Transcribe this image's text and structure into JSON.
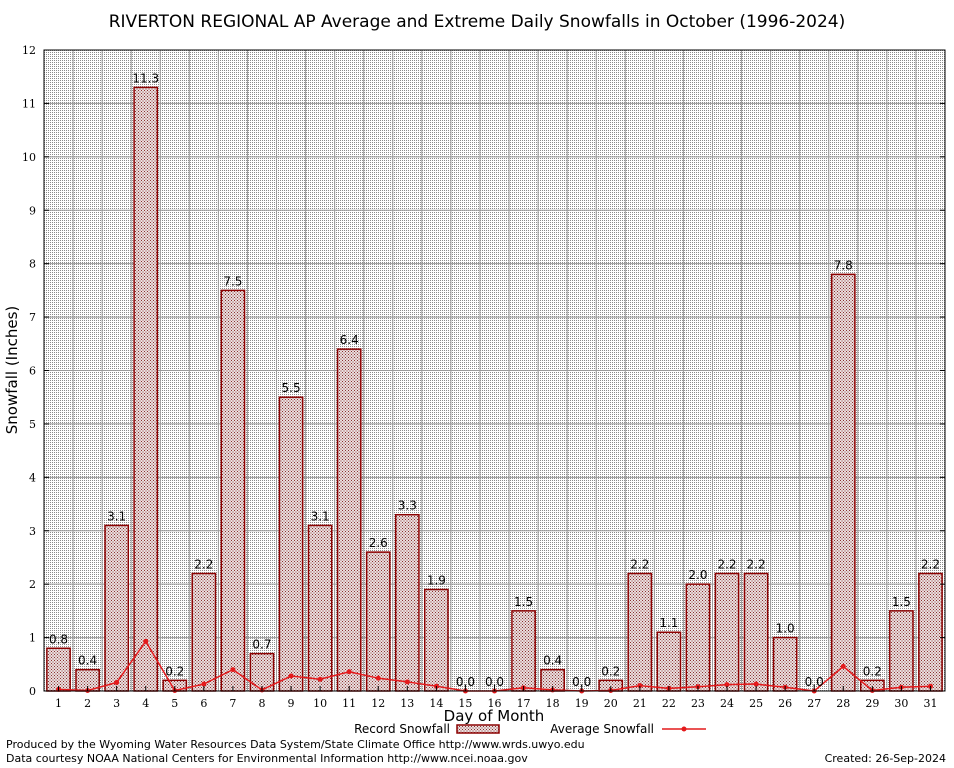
{
  "chart_data": {
    "type": "bar",
    "title": "RIVERTON REGIONAL AP Average and Extreme Daily Snowfalls in October (1996-2024)",
    "xlabel": "Day of Month",
    "ylabel": "Snowfall (Inches)",
    "ylim": [
      0,
      12
    ],
    "yticks": [
      0,
      1,
      2,
      3,
      4,
      5,
      6,
      7,
      8,
      9,
      10,
      11,
      12
    ],
    "grid": true,
    "legend_position": "bottom",
    "categories": [
      1,
      2,
      3,
      4,
      5,
      6,
      7,
      8,
      9,
      10,
      11,
      12,
      13,
      14,
      15,
      16,
      17,
      18,
      19,
      20,
      21,
      22,
      23,
      24,
      25,
      26,
      27,
      28,
      29,
      30,
      31
    ],
    "series": [
      {
        "name": "Record Snowfall",
        "type": "bar",
        "color": "#8b0000",
        "values": [
          0.8,
          0.4,
          3.1,
          11.3,
          0.2,
          2.2,
          7.5,
          0.7,
          5.5,
          3.1,
          6.4,
          2.6,
          3.3,
          1.9,
          0.0,
          0.0,
          1.5,
          0.4,
          0.0,
          0.2,
          2.2,
          1.1,
          2.0,
          2.2,
          2.2,
          1.0,
          0.0,
          7.8,
          0.2,
          1.5,
          2.2
        ],
        "labels": [
          "0.8",
          "0.4",
          "3.1",
          "11.3",
          "0.2",
          "2.2",
          "7.5",
          "0.7",
          "5.5",
          "3.1",
          "6.4",
          "2.6",
          "3.3",
          "1.9",
          "0.0",
          "0.0",
          "1.5",
          "0.4",
          "0.0",
          "0.2",
          "2.2",
          "1.1",
          "2.0",
          "2.2",
          "2.2",
          "1.0",
          "0.0",
          "7.8",
          "0.2",
          "1.5",
          "2.2"
        ]
      },
      {
        "name": "Average Snowfall",
        "type": "line",
        "color": "#e41a1c",
        "values": [
          0.03,
          0.01,
          0.16,
          0.93,
          0.01,
          0.13,
          0.4,
          0.02,
          0.28,
          0.22,
          0.36,
          0.24,
          0.17,
          0.09,
          0.0,
          0.0,
          0.06,
          0.02,
          0.0,
          0.01,
          0.1,
          0.05,
          0.08,
          0.12,
          0.13,
          0.07,
          0.0,
          0.46,
          0.01,
          0.07,
          0.09
        ]
      }
    ]
  },
  "footer": {
    "producer": "Produced by the Wyoming Water Resources Data System/State Climate Office http://www.wrds.uwyo.edu",
    "courtesy": "Data courtesy NOAA National Centers for Environmental Information http://www.ncei.noaa.gov",
    "created": "Created:  26-Sep-2024"
  }
}
